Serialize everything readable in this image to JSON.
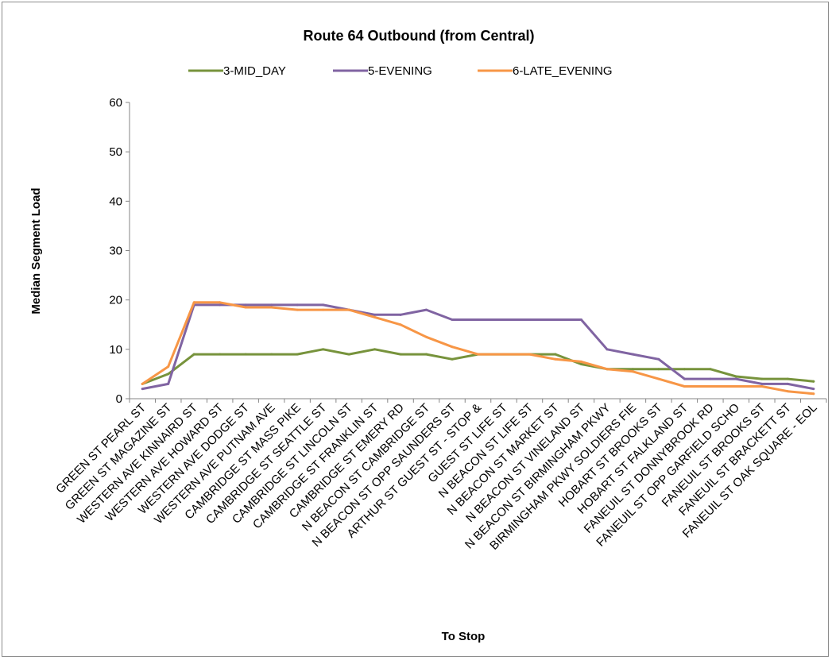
{
  "chart_data": {
    "type": "line",
    "title": "Route 64 Outbound (from Central)",
    "xlabel": "To Stop",
    "ylabel": "Median Segment Load",
    "ylim": [
      0,
      60
    ],
    "yticks": [
      0,
      10,
      20,
      30,
      40,
      50,
      60
    ],
    "grid": false,
    "legend_position": "top",
    "categories": [
      "GREEN ST PEARL ST",
      "GREEN ST MAGAZINE ST",
      "WESTERN AVE KINNAIRD ST",
      "WESTERN AVE HOWARD ST",
      "WESTERN AVE DODGE ST",
      "WESTERN AVE PUTNAM AVE",
      "CAMBRIDGE ST MASS PIKE",
      "CAMBRIDGE ST SEATTLE ST",
      "CAMBRIDGE ST LINCOLN ST",
      "CAMBRIDGE ST FRANKLIN ST",
      "CAMBRIDGE ST EMERY RD",
      "N BEACON ST CAMBRIDGE ST",
      "N BEACON ST OPP SAUNDERS ST",
      "ARTHUR ST GUEST ST - STOP &",
      "GUEST ST LIFE ST",
      "N BEACON ST LIFE ST",
      "N BEACON ST MARKET ST",
      "N BEACON ST VINELAND ST",
      "N BEACON ST BIRMINGHAM PKWY",
      "BIRMINGHAM PKWY SOLDIERS FIE",
      "HOBART ST BROOKS ST",
      "HOBART ST FALKLAND ST",
      "FANEUIL ST DONNYBROOK RD",
      "FANEUIL ST OPP GARFIELD SCHO",
      "FANEUIL ST BROOKS ST",
      "FANEUIL ST BRACKETT ST",
      "FANEUIL ST OAK SQUARE - EOL"
    ],
    "series": [
      {
        "name": "3-MID_DAY",
        "color": "#77933C",
        "values": [
          3,
          5,
          9,
          9,
          9,
          9,
          9,
          10,
          9,
          10,
          9,
          9,
          8,
          9,
          9,
          9,
          9,
          7,
          6,
          6,
          6,
          6,
          6,
          4.5,
          4,
          4,
          3.5
        ]
      },
      {
        "name": "5-EVENING",
        "color": "#8064A2",
        "values": [
          2,
          3,
          19,
          19,
          19,
          19,
          19,
          19,
          18,
          17,
          17,
          18,
          16,
          16,
          16,
          16,
          16,
          16,
          10,
          9,
          8,
          4,
          4,
          4,
          3,
          3,
          2
        ]
      },
      {
        "name": "6-LATE_EVENING",
        "color": "#F79646",
        "values": [
          3,
          6.5,
          19.5,
          19.5,
          18.5,
          18.5,
          18,
          18,
          18,
          16.5,
          15,
          12.5,
          10.5,
          9,
          9,
          9,
          8,
          7.5,
          6,
          5.5,
          4,
          2.5,
          2.5,
          2.5,
          2.5,
          1.5,
          1
        ]
      }
    ]
  }
}
